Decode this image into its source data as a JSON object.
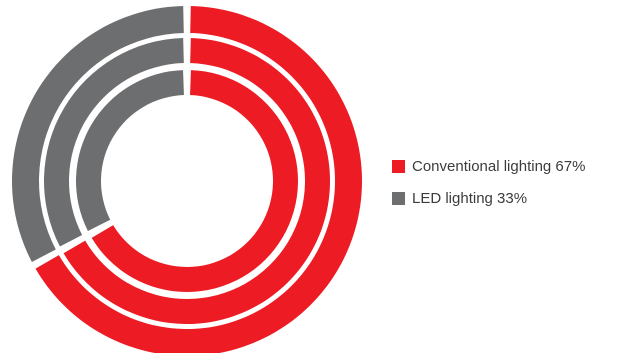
{
  "chart_data": {
    "type": "pie",
    "variant": "concentric-donut",
    "rings": 3,
    "series": [
      {
        "name": "Conventional lighting 67%",
        "value": 67,
        "color": "#ed1c24"
      },
      {
        "name": "LED lighting 33%",
        "value": 33,
        "color": "#6d6e70"
      }
    ],
    "legend_position": "right"
  }
}
